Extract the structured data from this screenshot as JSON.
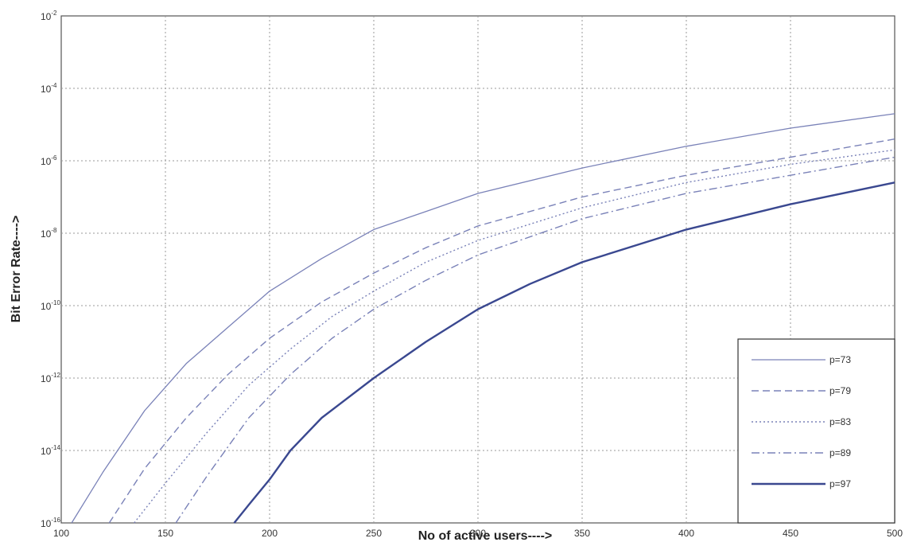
{
  "chart_data": {
    "type": "line",
    "xlabel": "No of active users---->",
    "ylabel": "Bit Error Rate---->",
    "xlim": [
      100,
      500
    ],
    "ylim_exponent": [
      -16,
      -2
    ],
    "y_scale": "log",
    "xticks": [
      100,
      150,
      200,
      250,
      300,
      350,
      400,
      450,
      500
    ],
    "yticks": [
      {
        "base": "10",
        "exp": "-2"
      },
      {
        "base": "10",
        "exp": "-4"
      },
      {
        "base": "10",
        "exp": "-6"
      },
      {
        "base": "10",
        "exp": "-8"
      },
      {
        "base": "10",
        "exp": "-10"
      },
      {
        "base": "10",
        "exp": "-12"
      },
      {
        "base": "10",
        "exp": "-14"
      },
      {
        "base": "10",
        "exp": "-16"
      }
    ],
    "grid": true,
    "legend_position": "bottom-right",
    "series": [
      {
        "name": "p=73",
        "style": "solid",
        "color": "#7a82b8",
        "x": [
          105,
          120,
          140,
          160,
          180,
          200,
          225,
          250,
          275,
          300,
          350,
          400,
          450,
          500
        ],
        "log10_y": [
          -16,
          -14.6,
          -12.9,
          -11.6,
          -10.6,
          -9.6,
          -8.7,
          -7.9,
          -7.4,
          -6.9,
          -6.2,
          -5.6,
          -5.1,
          -4.7
        ]
      },
      {
        "name": "p=79",
        "style": "dashed",
        "color": "#7a82b8",
        "x": [
          123,
          140,
          160,
          180,
          200,
          225,
          250,
          275,
          300,
          350,
          400,
          450,
          500
        ],
        "log10_y": [
          -16,
          -14.5,
          -13.1,
          -11.9,
          -10.9,
          -9.9,
          -9.1,
          -8.4,
          -7.8,
          -7.0,
          -6.4,
          -5.9,
          -5.4
        ]
      },
      {
        "name": "p=83",
        "style": "dotted",
        "color": "#7a82b8",
        "x": [
          135,
          150,
          170,
          190,
          210,
          230,
          250,
          275,
          300,
          350,
          400,
          450,
          500
        ],
        "log10_y": [
          -16,
          -14.9,
          -13.5,
          -12.2,
          -11.2,
          -10.3,
          -9.6,
          -8.8,
          -8.2,
          -7.3,
          -6.6,
          -6.1,
          -5.7
        ]
      },
      {
        "name": "p=89",
        "style": "dashdot",
        "color": "#7a82b8",
        "x": [
          155,
          170,
          190,
          210,
          230,
          250,
          275,
          300,
          350,
          400,
          450,
          500
        ],
        "log10_y": [
          -16,
          -14.7,
          -13.1,
          -11.9,
          -10.9,
          -10.1,
          -9.3,
          -8.6,
          -7.6,
          -6.9,
          -6.4,
          -5.9
        ]
      },
      {
        "name": "p=97",
        "style": "solid-bold",
        "color": "#3a4890",
        "x": [
          183,
          190,
          200,
          210,
          225,
          250,
          275,
          300,
          325,
          350,
          400,
          450,
          500
        ],
        "log10_y": [
          -16,
          -15.5,
          -14.8,
          -14.0,
          -13.1,
          -12.0,
          -11.0,
          -10.1,
          -9.4,
          -8.8,
          -7.9,
          -7.2,
          -6.6
        ]
      }
    ]
  }
}
